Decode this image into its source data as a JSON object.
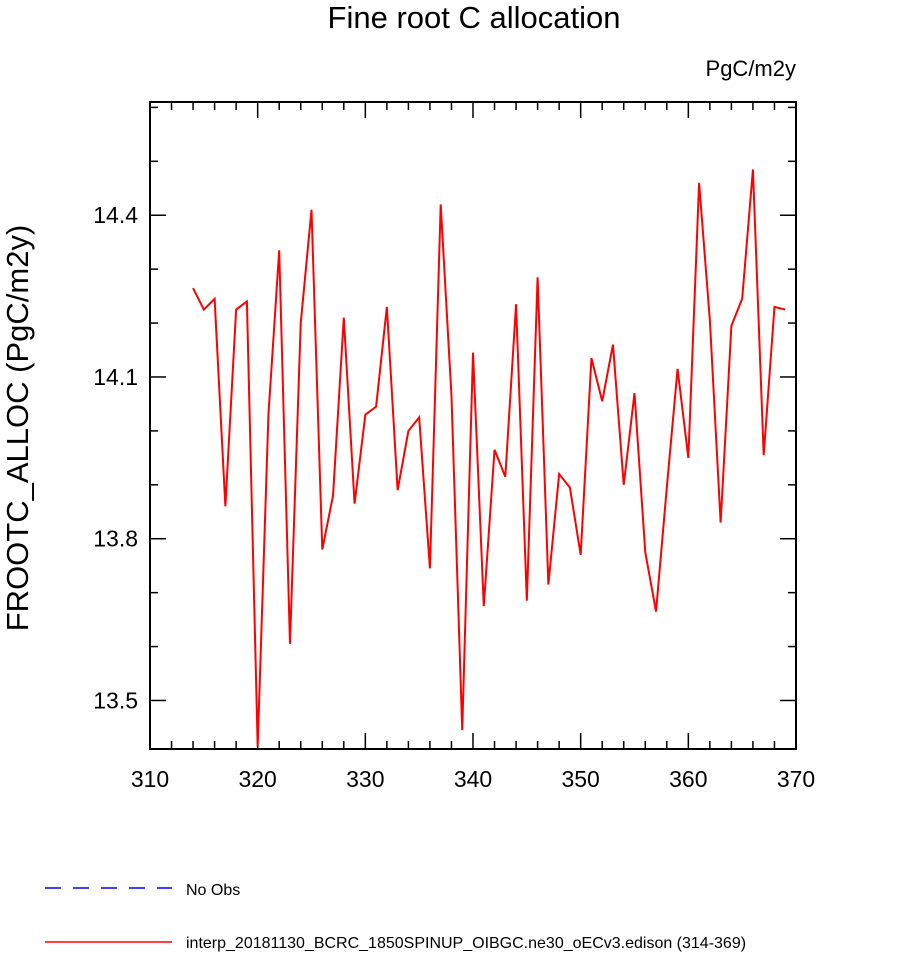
{
  "chart_data": {
    "type": "line",
    "title": "Fine root C allocation",
    "units": "PgC/m2y",
    "ylabel": "FROOTC_ALLOC  (PgC/m2y)",
    "xlabel": "",
    "xlim": [
      310,
      370
    ],
    "ylim": [
      13.41,
      14.61
    ],
    "x_ticks": [
      310,
      320,
      330,
      340,
      350,
      360,
      370
    ],
    "y_ticks": [
      13.5,
      13.8,
      14.1,
      14.4
    ],
    "y_tick_labels": [
      "13.5",
      "13.8",
      "14.1",
      "14.4"
    ],
    "grid": false,
    "legend_position": "bottom-left",
    "series": [
      {
        "name": "No Obs",
        "color": "#0000ff",
        "dash": "dashed",
        "x": [],
        "y": []
      },
      {
        "name": "interp_20181130_BCRC_1850SPINUP_OIBGC.ne30_oECv3.edison (314-369)",
        "color": "#ff0000",
        "dash": "solid",
        "x": [
          314,
          315,
          316,
          317,
          318,
          319,
          320,
          321,
          322,
          323,
          324,
          325,
          326,
          327,
          328,
          329,
          330,
          331,
          332,
          333,
          334,
          335,
          336,
          337,
          338,
          339,
          340,
          341,
          342,
          343,
          344,
          345,
          346,
          347,
          348,
          349,
          350,
          351,
          352,
          353,
          354,
          355,
          356,
          357,
          358,
          359,
          360,
          361,
          362,
          363,
          364,
          365,
          366,
          367,
          368,
          369
        ],
        "y": [
          14.265,
          14.225,
          14.245,
          13.86,
          14.225,
          14.24,
          13.415,
          14.03,
          14.335,
          13.605,
          14.2,
          14.41,
          13.78,
          13.88,
          14.21,
          13.865,
          14.03,
          14.045,
          14.23,
          13.89,
          14.0,
          14.025,
          13.745,
          14.42,
          14.065,
          13.445,
          14.145,
          13.675,
          13.965,
          13.915,
          14.235,
          13.685,
          14.285,
          13.715,
          13.92,
          13.895,
          13.77,
          14.135,
          14.055,
          14.16,
          13.9,
          14.07,
          13.775,
          13.665,
          13.895,
          14.115,
          13.95,
          14.46,
          14.205,
          13.83,
          14.195,
          14.245,
          14.485,
          13.955,
          14.23,
          14.225
        ]
      }
    ]
  }
}
